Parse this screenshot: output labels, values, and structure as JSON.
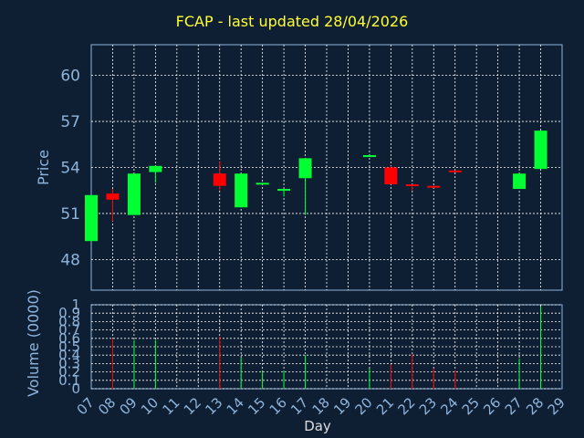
{
  "colors": {
    "background": "#0f1f33",
    "title": "#ffff33",
    "axis_text": "#8fb4dc",
    "grid": "#ffffff",
    "up": "#00ff33",
    "down": "#ff0000"
  },
  "chart_data": [
    {
      "type": "candlestick",
      "title": "FCAP - last updated 28/04/2026",
      "ylabel": "Price",
      "ylim": [
        46,
        62
      ],
      "yticks": [
        48,
        51,
        54,
        57,
        60
      ],
      "categories": [
        "07",
        "08",
        "09",
        "10",
        "11",
        "12",
        "13",
        "14",
        "15",
        "16",
        "17",
        "18",
        "19",
        "20",
        "21",
        "22",
        "23",
        "24",
        "25",
        "26",
        "27",
        "28",
        "29"
      ],
      "candles": [
        {
          "day": "07",
          "open": 49.2,
          "high": 52.2,
          "low": 49.2,
          "close": 52.2
        },
        {
          "day": "08",
          "open": 52.3,
          "high": 52.6,
          "low": 50.5,
          "close": 51.9
        },
        {
          "day": "09",
          "open": 50.9,
          "high": 53.6,
          "low": 50.9,
          "close": 53.6
        },
        {
          "day": "10",
          "open": 53.7,
          "high": 54.1,
          "low": 53.0,
          "close": 54.1
        },
        {
          "day": "13",
          "open": 53.6,
          "high": 54.4,
          "low": 52.5,
          "close": 52.8
        },
        {
          "day": "14",
          "open": 51.4,
          "high": 53.6,
          "low": 51.4,
          "close": 53.6
        },
        {
          "day": "15",
          "open": 52.9,
          "high": 53.0,
          "low": 52.9,
          "close": 53.0
        },
        {
          "day": "16",
          "open": 52.5,
          "high": 52.6,
          "low": 52.1,
          "close": 52.6
        },
        {
          "day": "17",
          "open": 53.3,
          "high": 54.6,
          "low": 50.9,
          "close": 54.6
        },
        {
          "day": "20",
          "open": 54.7,
          "high": 54.8,
          "low": 54.7,
          "close": 54.8
        },
        {
          "day": "21",
          "open": 54.0,
          "high": 54.1,
          "low": 52.9,
          "close": 52.9
        },
        {
          "day": "22",
          "open": 52.9,
          "high": 52.9,
          "low": 52.5,
          "close": 52.8
        },
        {
          "day": "23",
          "open": 52.8,
          "high": 52.8,
          "low": 52.7,
          "close": 52.7
        },
        {
          "day": "24",
          "open": 53.8,
          "high": 53.8,
          "low": 53.7,
          "close": 53.7
        },
        {
          "day": "27",
          "open": 52.6,
          "high": 53.6,
          "low": 52.6,
          "close": 53.6
        },
        {
          "day": "28",
          "open": 53.9,
          "high": 56.4,
          "low": 53.9,
          "close": 56.4
        }
      ]
    },
    {
      "type": "bar",
      "ylabel": "Volume (0000)",
      "xlabel": "Day",
      "ylim": [
        0,
        1
      ],
      "yticks": [
        "0",
        "0.1",
        "0.2",
        "0.3",
        "0.4",
        "0.5",
        "0.6",
        "0.7",
        "0.8",
        "0.9",
        "1"
      ],
      "volumes": [
        {
          "day": "08",
          "value": 0.6,
          "dir": "down"
        },
        {
          "day": "09",
          "value": 0.58,
          "dir": "up"
        },
        {
          "day": "10",
          "value": 0.58,
          "dir": "up"
        },
        {
          "day": "13",
          "value": 0.62,
          "dir": "down"
        },
        {
          "day": "14",
          "value": 0.37,
          "dir": "up"
        },
        {
          "day": "15",
          "value": 0.22,
          "dir": "up"
        },
        {
          "day": "16",
          "value": 0.22,
          "dir": "up"
        },
        {
          "day": "17",
          "value": 0.4,
          "dir": "up"
        },
        {
          "day": "20",
          "value": 0.24,
          "dir": "up"
        },
        {
          "day": "21",
          "value": 0.29,
          "dir": "down"
        },
        {
          "day": "22",
          "value": 0.41,
          "dir": "down"
        },
        {
          "day": "23",
          "value": 0.24,
          "dir": "down"
        },
        {
          "day": "24",
          "value": 0.22,
          "dir": "down"
        },
        {
          "day": "27",
          "value": 0.36,
          "dir": "up"
        },
        {
          "day": "28",
          "value": 0.98,
          "dir": "up"
        }
      ]
    }
  ]
}
